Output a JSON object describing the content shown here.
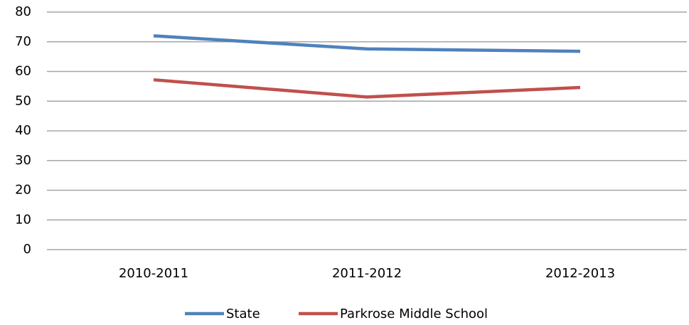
{
  "chart_data": {
    "type": "line",
    "categories": [
      "2010-2011",
      "2011-2012",
      "2012-2013"
    ],
    "series": [
      {
        "name": "State",
        "color": "#4f81bd",
        "values": [
          72,
          67.6,
          66.8
        ]
      },
      {
        "name": "Parkrose Middle School",
        "color": "#c0504d",
        "values": [
          57.2,
          51.4,
          54.6
        ]
      }
    ],
    "ylim": [
      0,
      80
    ],
    "yticks": [
      0,
      10,
      20,
      30,
      40,
      50,
      60,
      70,
      80
    ],
    "grid": true,
    "legend": "bottom"
  }
}
